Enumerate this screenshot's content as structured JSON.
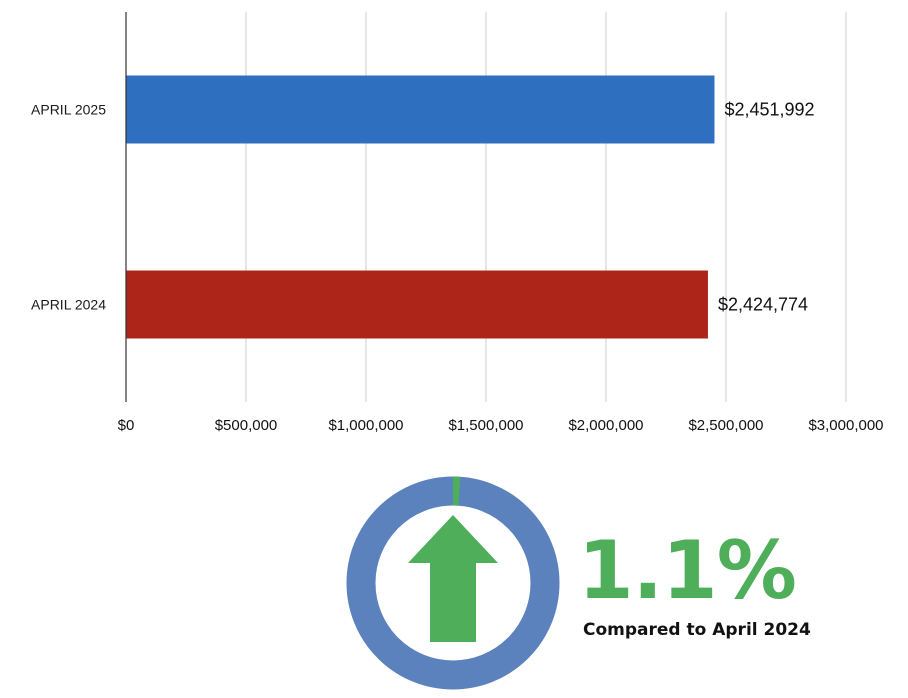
{
  "chart_data": {
    "type": "bar",
    "orientation": "horizontal",
    "categories": [
      "APRIL 2025",
      "APRIL 2024"
    ],
    "values": [
      2451992,
      2424774
    ],
    "value_labels": [
      "$2,451,992",
      "$2,424,774"
    ],
    "colors": [
      "#2f6fbf",
      "#ad2418"
    ],
    "xlim": [
      0,
      3000000
    ],
    "x_ticks": [
      0,
      500000,
      1000000,
      1500000,
      2000000,
      2500000,
      3000000
    ],
    "x_tick_labels": [
      "$0",
      "$500,000",
      "$1,000,000",
      "$1,500,000",
      "$2,000,000",
      "$2,500,000",
      "$3,000,000"
    ],
    "grid": "vertical",
    "legend": "none"
  },
  "change_indicator": {
    "value": "1.1%",
    "caption": "Compared to April 2024",
    "direction": "up",
    "ring_fraction": 0.011,
    "ring_color": "#5b82bd",
    "accent_color": "#4fae5a",
    "icon": "up-arrow-icon"
  }
}
